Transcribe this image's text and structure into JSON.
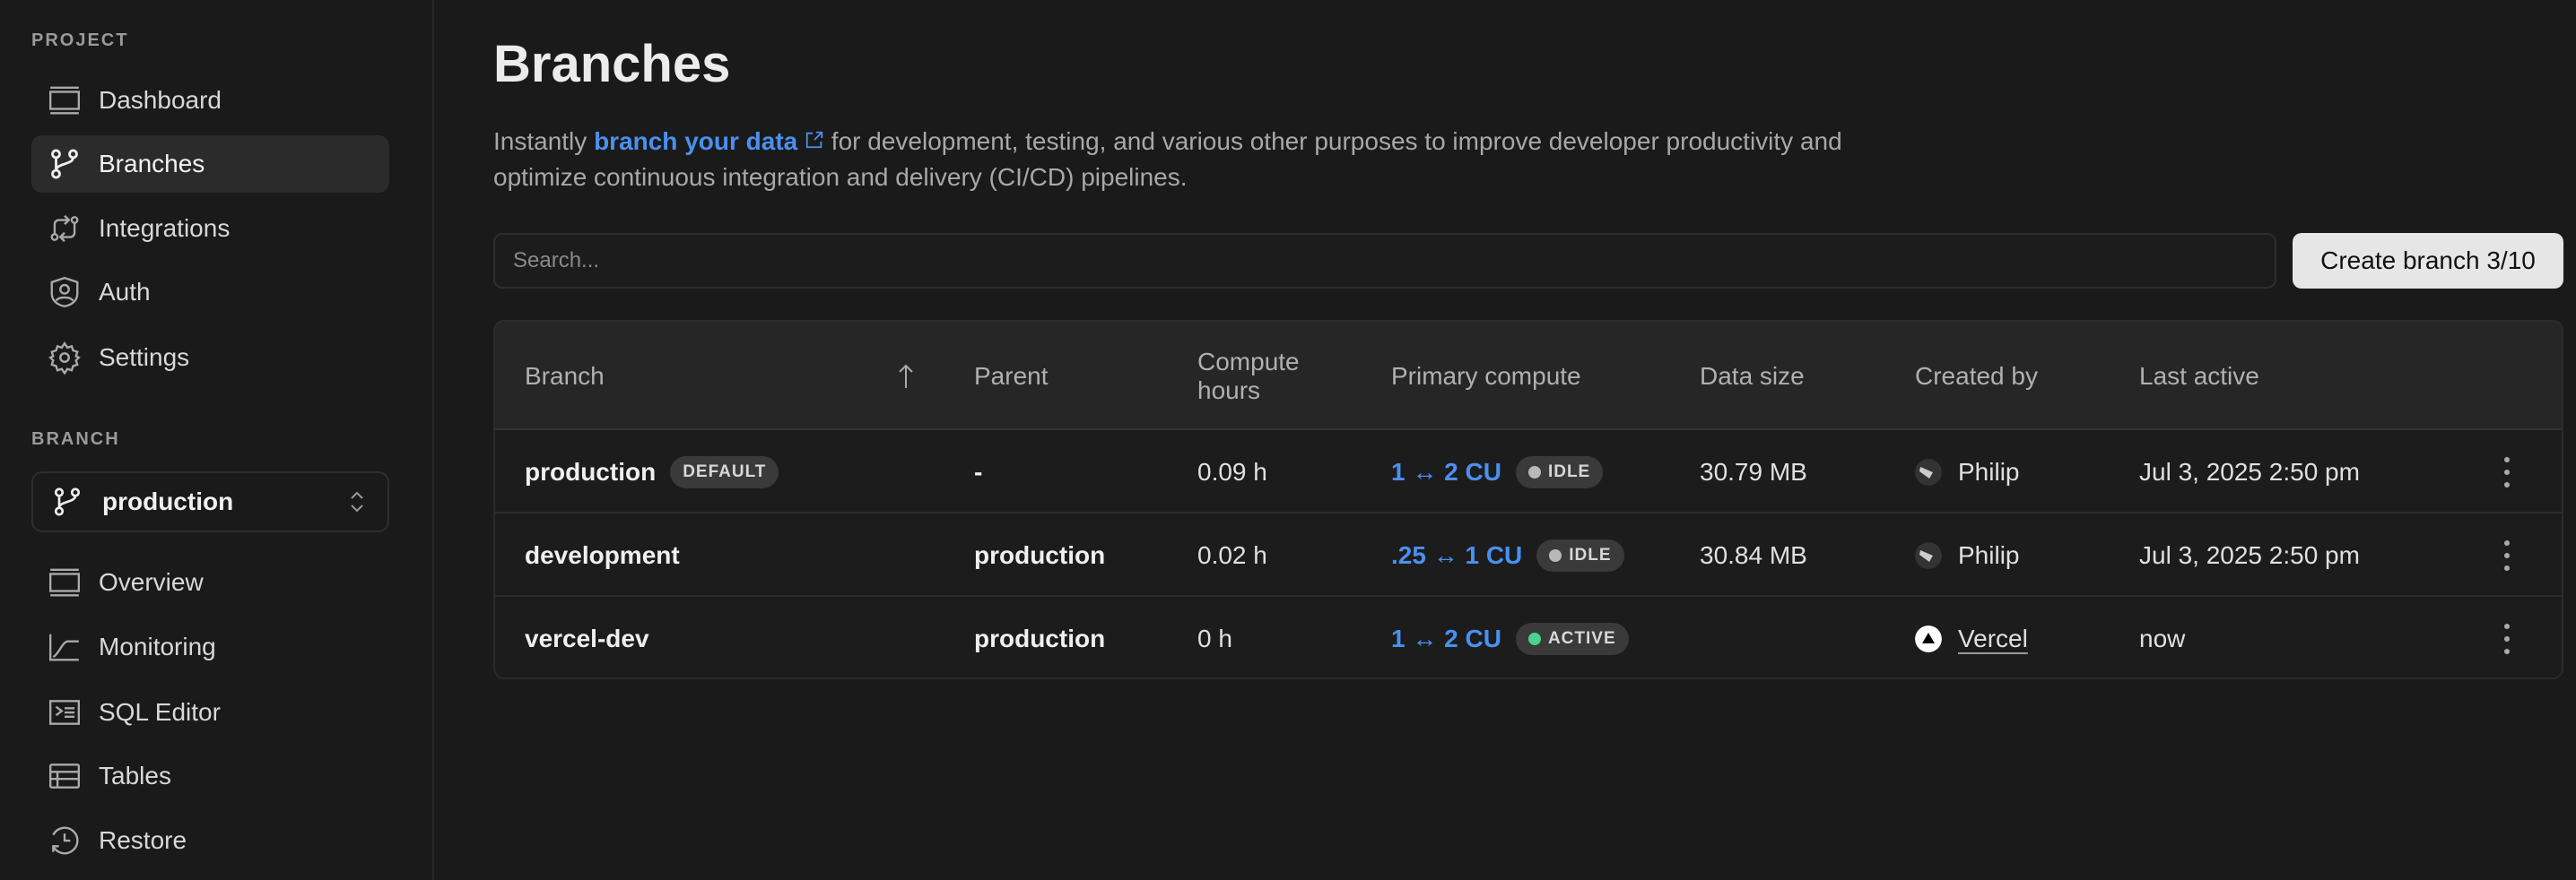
{
  "sidebar": {
    "project_label": "PROJECT",
    "project_items": [
      {
        "label": "Dashboard",
        "icon": "dashboard-icon"
      },
      {
        "label": "Branches",
        "icon": "branch-icon",
        "active": true
      },
      {
        "label": "Integrations",
        "icon": "integrations-icon"
      },
      {
        "label": "Auth",
        "icon": "auth-shield-icon"
      },
      {
        "label": "Settings",
        "icon": "gear-icon"
      }
    ],
    "branch_label": "BRANCH",
    "branch_select": "production",
    "branch_items": [
      {
        "label": "Overview",
        "icon": "overview-icon"
      },
      {
        "label": "Monitoring",
        "icon": "monitoring-icon"
      },
      {
        "label": "SQL Editor",
        "icon": "terminal-icon"
      },
      {
        "label": "Tables",
        "icon": "table-icon"
      },
      {
        "label": "Restore",
        "icon": "restore-icon"
      }
    ]
  },
  "main": {
    "title": "Branches",
    "desc_pre": "Instantly ",
    "desc_link": "branch your data",
    "desc_post": " for development, testing, and various other purposes to improve developer productivity and optimize continuous integration and delivery (CI/CD) pipelines.",
    "search_placeholder": "Search...",
    "create_button": "Create branch 3/10"
  },
  "colors": {
    "accent": "#4a90f0",
    "idle": "#b8b8b8",
    "active": "#4cd28a"
  },
  "table": {
    "headers": {
      "branch": "Branch",
      "parent": "Parent",
      "compute_hours": "Compute hours",
      "primary_compute": "Primary compute",
      "data_size": "Data size",
      "created_by": "Created by",
      "last_active": "Last active"
    },
    "rows": [
      {
        "branch": "production",
        "badge": "DEFAULT",
        "parent": "-",
        "hours": "0.09 h",
        "compute": "1 ↔ 2 CU",
        "status": "IDLE",
        "size": "30.79 MB",
        "creator": "Philip",
        "last": "Jul 3, 2025 2:50 pm"
      },
      {
        "branch": "development",
        "parent": "production",
        "hours": "0.02 h",
        "compute": ".25 ↔ 1 CU",
        "status": "IDLE",
        "size": "30.84 MB",
        "creator": "Philip",
        "last": "Jul 3, 2025 2:50 pm"
      },
      {
        "branch": "vercel-dev",
        "parent": "production",
        "hours": "0 h",
        "compute": "1 ↔ 2 CU",
        "status": "ACTIVE",
        "size": "",
        "creator": "Vercel",
        "last": "now"
      }
    ]
  }
}
